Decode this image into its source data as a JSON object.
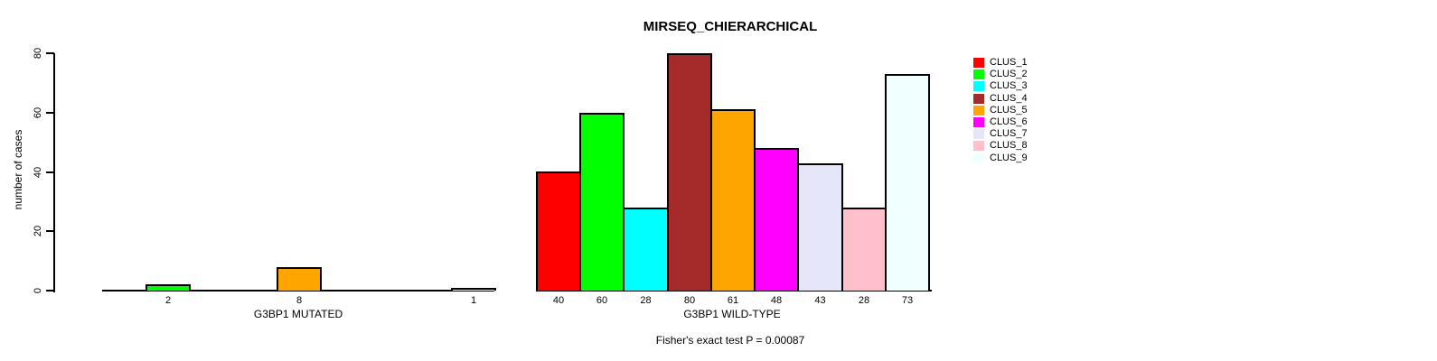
{
  "chart_data": {
    "type": "bar",
    "title": "MIRSEQ_CHIERARCHICAL",
    "ylabel": "number of cases",
    "xlabel": "",
    "ylim": [
      0,
      80
    ],
    "yticks": [
      0,
      20,
      40,
      60,
      80
    ],
    "grid": false,
    "legend_position": "right",
    "categories": [
      "CLUS_1",
      "CLUS_2",
      "CLUS_3",
      "CLUS_4",
      "CLUS_5",
      "CLUS_6",
      "CLUS_7",
      "CLUS_8",
      "CLUS_9"
    ],
    "colors": [
      "#FF0000",
      "#00FF00",
      "#00FFFF",
      "#A52A2A",
      "#FFA500",
      "#FF00FF",
      "#E6E6FA",
      "#FFC0CB",
      "#F0FFFF"
    ],
    "groups": [
      {
        "label": "G3BP1 MUTATED",
        "values": [
          0,
          2,
          0,
          0,
          8,
          0,
          0,
          0,
          1
        ]
      },
      {
        "label": "G3BP1 WILD-TYPE",
        "values": [
          40,
          60,
          28,
          80,
          61,
          48,
          43,
          28,
          73
        ]
      }
    ],
    "bar_value_labels_shown": "nonzero only",
    "annotation": "Fisher's exact test P = 0.00087",
    "bar_border_color": "#000000",
    "background_color": "#FFFFFF"
  }
}
